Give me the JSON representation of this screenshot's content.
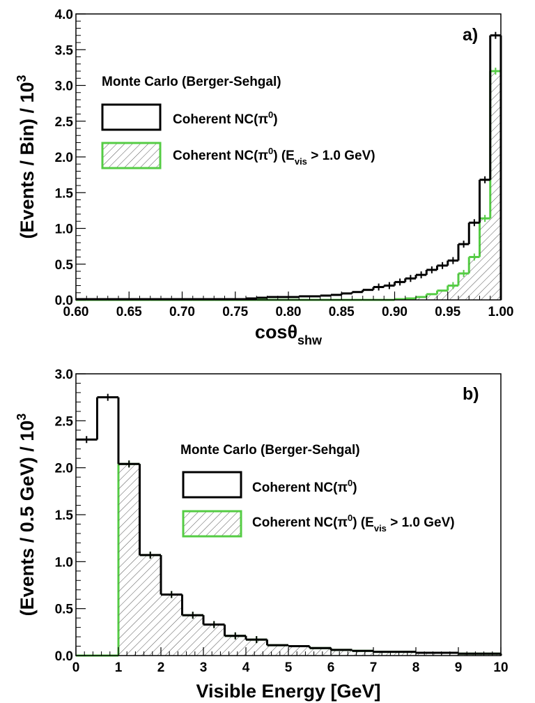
{
  "chart_data": [
    {
      "type": "histogram",
      "panel_label": "a)",
      "xlabel": "cosθ",
      "xlabel_sub": "shw",
      "ylabel": "(Events / Bin) / 10",
      "ylabel_sup": "3",
      "xlim": [
        0.6,
        1.0
      ],
      "ylim": [
        0,
        4.0
      ],
      "x_ticks": [
        "0.60",
        "0.65",
        "0.70",
        "0.75",
        "0.80",
        "0.85",
        "0.90",
        "0.95",
        "1.00"
      ],
      "y_ticks": [
        "0.0",
        "0.5",
        "1.0",
        "1.5",
        "2.0",
        "2.5",
        "3.0",
        "3.5",
        "4.0"
      ],
      "legend_title": "Monte Carlo (Berger-Sehgal)",
      "bin_edges": [
        0.6,
        0.61,
        0.62,
        0.63,
        0.64,
        0.65,
        0.66,
        0.67,
        0.68,
        0.69,
        0.7,
        0.71,
        0.72,
        0.73,
        0.74,
        0.75,
        0.76,
        0.77,
        0.78,
        0.79,
        0.8,
        0.81,
        0.82,
        0.83,
        0.84,
        0.85,
        0.86,
        0.87,
        0.88,
        0.89,
        0.9,
        0.91,
        0.92,
        0.93,
        0.94,
        0.95,
        0.96,
        0.97,
        0.98,
        0.99,
        1.0
      ],
      "series": [
        {
          "name": "Coherent NC(π0)",
          "legend_main": "Coherent NC(π",
          "legend_sup": "0",
          "legend_tail": ")",
          "color": "#000000",
          "values": [
            0.01,
            0.01,
            0.01,
            0.01,
            0.01,
            0.01,
            0.01,
            0.01,
            0.01,
            0.01,
            0.01,
            0.01,
            0.01,
            0.01,
            0.01,
            0.01,
            0.02,
            0.03,
            0.04,
            0.04,
            0.04,
            0.05,
            0.05,
            0.06,
            0.07,
            0.09,
            0.11,
            0.14,
            0.18,
            0.2,
            0.25,
            0.3,
            0.35,
            0.42,
            0.48,
            0.55,
            0.78,
            1.08,
            1.68,
            3.7
          ]
        },
        {
          "name": "Coherent NC(π0) (Evis > 1.0 GeV)",
          "legend_main": "Coherent NC(π",
          "legend_sup": "0",
          "legend_mid": ") (E",
          "legend_sub": "vis",
          "legend_tail": " > 1.0 GeV)",
          "color": "#55cc44",
          "hatched": true,
          "values": [
            0.0,
            0.0,
            0.0,
            0.0,
            0.0,
            0.0,
            0.0,
            0.0,
            0.0,
            0.0,
            0.0,
            0.0,
            0.0,
            0.0,
            0.0,
            0.0,
            0.0,
            0.0,
            0.0,
            0.0,
            0.0,
            0.0,
            0.0,
            0.0,
            0.0,
            0.0,
            0.0,
            0.0,
            0.0,
            0.0,
            0.01,
            0.02,
            0.04,
            0.08,
            0.13,
            0.2,
            0.37,
            0.6,
            1.14,
            3.2
          ]
        }
      ]
    },
    {
      "type": "histogram",
      "panel_label": "b)",
      "xlabel": "Visible Energy [GeV]",
      "ylabel": "(Events / 0.5 GeV) / 10",
      "ylabel_sup": "3",
      "xlim": [
        0,
        10
      ],
      "ylim": [
        0,
        3.0
      ],
      "x_ticks": [
        "0",
        "1",
        "2",
        "3",
        "4",
        "5",
        "6",
        "7",
        "8",
        "9",
        "10"
      ],
      "y_ticks": [
        "0.0",
        "0.5",
        "1.0",
        "1.5",
        "2.0",
        "2.5",
        "3.0"
      ],
      "legend_title": "Monte Carlo (Berger-Sehgal)",
      "bin_edges": [
        0,
        0.5,
        1.0,
        1.5,
        2.0,
        2.5,
        3.0,
        3.5,
        4.0,
        4.5,
        5.0,
        5.5,
        6.0,
        6.5,
        7.0,
        7.5,
        8.0,
        8.5,
        9.0,
        9.5,
        10.0
      ],
      "series": [
        {
          "name": "Coherent NC(π0)",
          "legend_main": "Coherent NC(π",
          "legend_sup": "0",
          "legend_tail": ")",
          "color": "#000000",
          "values": [
            2.3,
            2.75,
            2.04,
            1.07,
            0.65,
            0.43,
            0.33,
            0.21,
            0.17,
            0.11,
            0.1,
            0.08,
            0.06,
            0.05,
            0.04,
            0.04,
            0.03,
            0.03,
            0.02,
            0.02
          ]
        },
        {
          "name": "Coherent NC(π0) (Evis > 1.0 GeV)",
          "legend_main": "Coherent NC(π",
          "legend_sup": "0",
          "legend_mid": ") (E",
          "legend_sub": "vis",
          "legend_tail": " > 1.0 GeV)",
          "color": "#55cc44",
          "hatched": true,
          "values": [
            0.0,
            0.0,
            2.04,
            1.07,
            0.65,
            0.43,
            0.33,
            0.21,
            0.17,
            0.11,
            0.1,
            0.08,
            0.06,
            0.05,
            0.04,
            0.04,
            0.03,
            0.03,
            0.02,
            0.02
          ]
        }
      ]
    }
  ]
}
